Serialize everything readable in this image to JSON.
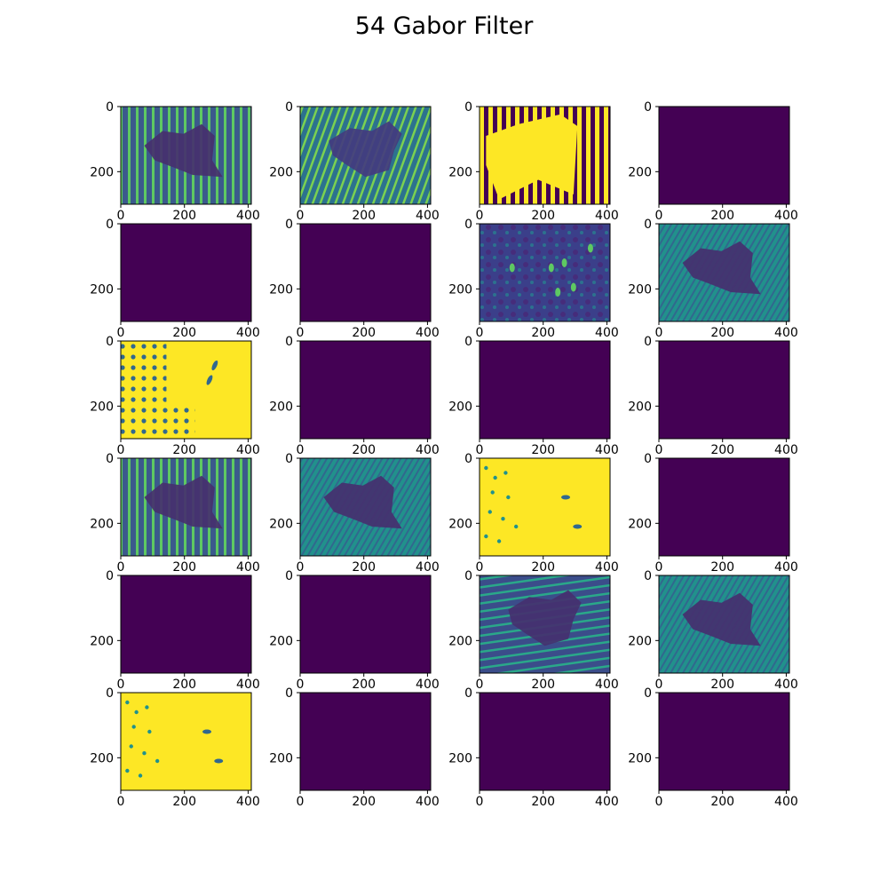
{
  "figure": {
    "title": "54 Gabor Filter",
    "colormap": "viridis",
    "colors": {
      "low": "#440154",
      "mid": "#21918c",
      "high": "#fde725",
      "teal": "#3b8b8c",
      "green": "#5ec962"
    }
  },
  "axes": {
    "x_ticks": [
      "0",
      "200",
      "400"
    ],
    "y_ticks": [
      "0",
      "200"
    ],
    "x_tick_values": [
      0,
      200,
      400
    ],
    "y_tick_values": [
      0,
      200
    ],
    "x_range": [
      0,
      410
    ],
    "y_range": [
      0,
      300
    ]
  },
  "grid": {
    "rows": 6,
    "cols": 4
  },
  "panels": [
    {
      "id": 1,
      "pattern": "texture-dark-blob"
    },
    {
      "id": 2,
      "pattern": "diagonal-stripes-dark-blob"
    },
    {
      "id": 3,
      "pattern": "yellow-blob-stripes"
    },
    {
      "id": 4,
      "pattern": "empty"
    },
    {
      "id": 5,
      "pattern": "empty"
    },
    {
      "id": 6,
      "pattern": "empty"
    },
    {
      "id": 7,
      "pattern": "dark-noise-spots"
    },
    {
      "id": 8,
      "pattern": "teal-dark-blob"
    },
    {
      "id": 9,
      "pattern": "yellow-dots"
    },
    {
      "id": 10,
      "pattern": "empty"
    },
    {
      "id": 11,
      "pattern": "empty"
    },
    {
      "id": 12,
      "pattern": "empty"
    },
    {
      "id": 13,
      "pattern": "texture-dark-blob"
    },
    {
      "id": 14,
      "pattern": "teal-dark-blob"
    },
    {
      "id": 15,
      "pattern": "yellow-dots-sparse"
    },
    {
      "id": 16,
      "pattern": "empty"
    },
    {
      "id": 17,
      "pattern": "empty"
    },
    {
      "id": 18,
      "pattern": "empty"
    },
    {
      "id": 19,
      "pattern": "horizontal-stripes-dark-blob"
    },
    {
      "id": 20,
      "pattern": "teal-dark-blob"
    },
    {
      "id": 21,
      "pattern": "yellow-dots-sparse"
    },
    {
      "id": 22,
      "pattern": "empty"
    },
    {
      "id": 23,
      "pattern": "empty"
    },
    {
      "id": 24,
      "pattern": "empty"
    }
  ]
}
